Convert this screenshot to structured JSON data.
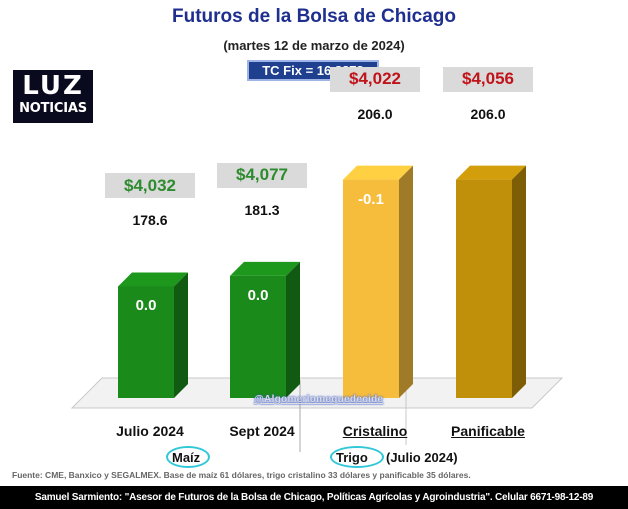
{
  "header": {
    "title": "Futuros de la Bolsa de Chicago",
    "date": "(martes 12 de marzo de 2024)",
    "tc_fix": "TC Fix = 16.8272"
  },
  "logo": {
    "top": "LUZ",
    "bottom": "NOTICIAS"
  },
  "colors": {
    "green_bar": "#1a8a1a",
    "cristalino_bar": "#f6bd3c",
    "panificable_bar": "#c0900a",
    "green_text": "#2e8b2e",
    "red_text": "#c0141a",
    "title": "#1f2f8f"
  },
  "chart_data": {
    "type": "bar",
    "categories": [
      "Julio 2024",
      "Sept 2024",
      "Cristalino",
      "Panificable"
    ],
    "values": [
      178.6,
      181.3,
      206.0,
      206.0
    ],
    "value_labels": [
      "178.6",
      "181.3",
      "206.0",
      "206.0"
    ],
    "price_labels": [
      "$4,032",
      "$4,077",
      "$4,022",
      "$4,056"
    ],
    "change_labels": [
      "0.0",
      "0.0",
      "-0.1",
      ""
    ],
    "groups": [
      {
        "label": "Maíz",
        "categories": [
          "Julio 2024",
          "Sept 2024"
        ]
      },
      {
        "label": "Trigo",
        "suffix": "(Julio 2024)",
        "categories": [
          "Cristalino",
          "Panificable"
        ]
      }
    ],
    "ylim": [
      0,
      220
    ]
  },
  "watermark": "@Algomerlomequedecide",
  "source_note": "Fuente: CME, Banxico y SEGALMEX. Base de maíz 61 dólares, trigo cristalino 33 dólares y panificable 35 dólares.",
  "footer": "Samuel Sarmiento: \"Asesor de Futuros de la Bolsa de Chicago, Políticas Agrícolas y Agroindustria\". Celular 6671-98-12-89"
}
